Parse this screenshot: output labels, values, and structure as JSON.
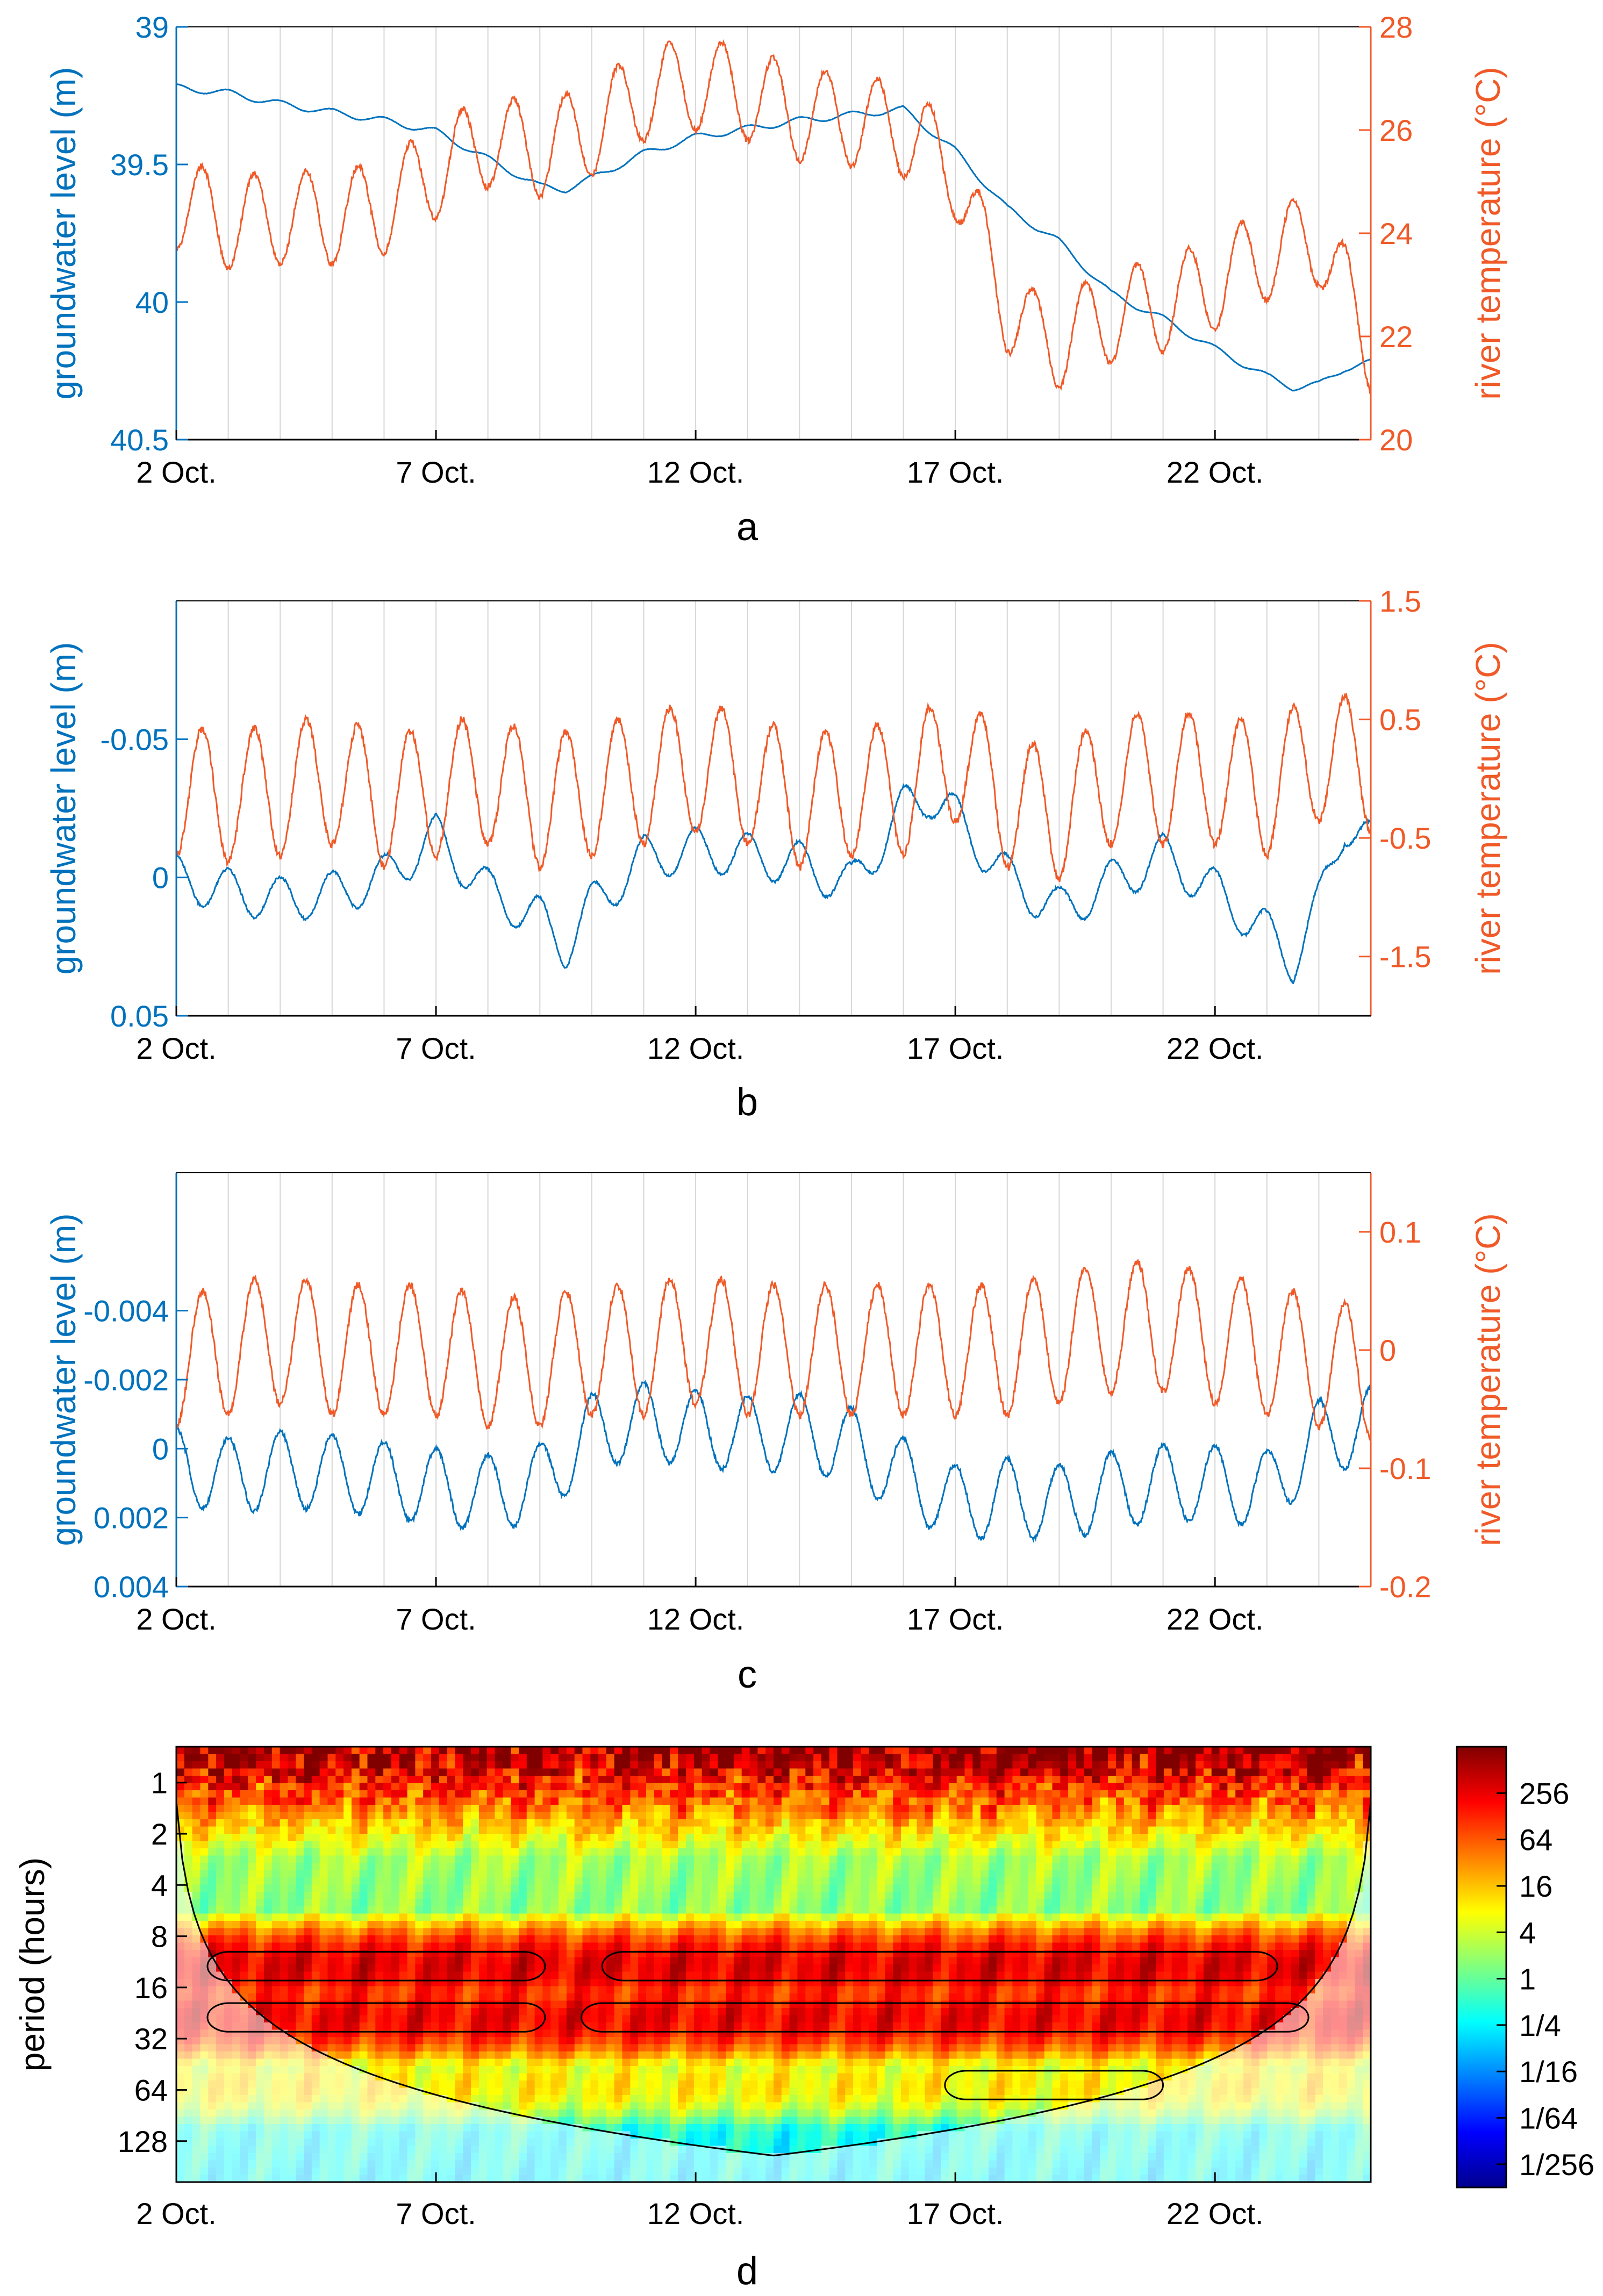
{
  "colors": {
    "groundwater": "#0072BD",
    "temperature": "#F05A28",
    "axis_black": "#000000",
    "grid": "#d6d6d6"
  },
  "chart_data": [
    {
      "type": "line",
      "panel_label": "a",
      "x_domain_days": [
        2,
        25
      ],
      "x_ticks": [
        {
          "day": 2,
          "label": "2 Oct."
        },
        {
          "day": 7,
          "label": "7 Oct."
        },
        {
          "day": 12,
          "label": "12 Oct."
        },
        {
          "day": 17,
          "label": "17 Oct."
        },
        {
          "day": 22,
          "label": "22 Oct."
        }
      ],
      "y_left": {
        "label": "groundwater level (m)",
        "lim": [
          39,
          40.5
        ],
        "reversed": true,
        "ticks": [
          {
            "v": 39,
            "label": "39"
          },
          {
            "v": 39.5,
            "label": "39.5"
          },
          {
            "v": 40,
            "label": "40"
          },
          {
            "v": 40.5,
            "label": "40.5"
          }
        ]
      },
      "y_right": {
        "label": "river temperature (°C)",
        "lim": [
          20,
          28
        ],
        "ticks": [
          {
            "v": 20,
            "label": "20"
          },
          {
            "v": 22,
            "label": "22"
          },
          {
            "v": 24,
            "label": "24"
          },
          {
            "v": 26,
            "label": "26"
          },
          {
            "v": 28,
            "label": "28"
          }
        ]
      },
      "series": [
        {
          "axis": "left",
          "color_key": "groundwater",
          "diurnal_amp": 0.012,
          "x": [
            2,
            3,
            4,
            5,
            6,
            7,
            8,
            9,
            9.5,
            10,
            11,
            12,
            13,
            14,
            15,
            16,
            17,
            18,
            19,
            20,
            21,
            22,
            23,
            23.5,
            24,
            24.5,
            25
          ],
          "y": [
            39.22,
            39.24,
            39.28,
            39.31,
            39.34,
            39.38,
            39.48,
            39.58,
            39.59,
            39.55,
            39.46,
            39.4,
            39.37,
            39.34,
            39.32,
            39.3,
            39.45,
            39.66,
            39.78,
            39.97,
            40.06,
            40.17,
            40.27,
            40.31,
            40.3,
            40.24,
            40.22
          ]
        },
        {
          "axis": "right",
          "color_key": "temperature",
          "diurnal_amp": 0.9,
          "x": [
            2,
            3,
            4,
            5,
            6,
            7,
            8,
            9,
            10,
            11,
            12,
            13,
            14,
            15,
            16,
            17,
            17.5,
            18,
            18.5,
            19,
            20,
            21,
            22,
            23,
            24,
            25
          ],
          "y": [
            24.6,
            24.2,
            24.3,
            24.3,
            24.5,
            25.2,
            25.8,
            25.6,
            26.0,
            26.7,
            26.9,
            26.7,
            26.3,
            26.2,
            26.0,
            25.2,
            23.8,
            22.6,
            22.0,
            21.9,
            22.4,
            22.6,
            23.0,
            23.6,
            23.9,
            21.8
          ]
        }
      ]
    },
    {
      "type": "line",
      "panel_label": "b",
      "x_domain_days": [
        2,
        25
      ],
      "x_ticks": [
        {
          "day": 2,
          "label": "2 Oct."
        },
        {
          "day": 7,
          "label": "7 Oct."
        },
        {
          "day": 12,
          "label": "12 Oct."
        },
        {
          "day": 17,
          "label": "17 Oct."
        },
        {
          "day": 22,
          "label": "22 Oct."
        }
      ],
      "y_left": {
        "label": "groundwater level (m)",
        "lim": [
          -0.1,
          0.05
        ],
        "reversed": true,
        "ticks": [
          {
            "v": -0.05,
            "label": "-0.05"
          },
          {
            "v": 0,
            "label": "0"
          },
          {
            "v": 0.05,
            "label": "0.05"
          }
        ]
      },
      "y_right": {
        "label": "river temperature (°C)",
        "lim": [
          -2,
          1.5
        ],
        "ticks": [
          {
            "v": -1.5,
            "label": "-1.5"
          },
          {
            "v": -0.5,
            "label": "-0.5"
          },
          {
            "v": 0.5,
            "label": "0.5"
          },
          {
            "v": 1.5,
            "label": "1.5"
          }
        ]
      },
      "series": [
        {
          "axis": "left",
          "color_key": "groundwater",
          "diurnal_amp": 0.008,
          "x": [
            2,
            3,
            4,
            5,
            6,
            7,
            8,
            9,
            9.5,
            10,
            11,
            12,
            13,
            14,
            15,
            16,
            16.5,
            17,
            18,
            19,
            20,
            21,
            22,
            23,
            23.5,
            24,
            24.5,
            25
          ],
          "y": [
            0.0,
            0.005,
            0.008,
            0.006,
            0.0,
            -0.015,
            0.005,
            0.015,
            0.025,
            0.01,
            -0.007,
            -0.01,
            -0.008,
            -0.005,
            0.003,
            -0.025,
            -0.03,
            -0.022,
            0.0,
            0.012,
            0.002,
            -0.008,
            0.005,
            0.02,
            0.03,
            0.01,
            -0.02,
            -0.012
          ]
        },
        {
          "axis": "right",
          "color_key": "temperature",
          "diurnal_amp": 0.55,
          "x": [
            2,
            3,
            4,
            5,
            6,
            7,
            8,
            9,
            10,
            11,
            12,
            13,
            14,
            15,
            16,
            17,
            18,
            19,
            20,
            21,
            22,
            23,
            24,
            25
          ],
          "y": [
            -0.1,
            -0.15,
            -0.1,
            0.0,
            -0.2,
            -0.1,
            0.0,
            -0.2,
            -0.1,
            0.0,
            0.1,
            0.0,
            -0.2,
            -0.1,
            -0.1,
            0.2,
            -0.2,
            -0.3,
            0.0,
            0.0,
            0.0,
            -0.1,
            0.2,
            0.1
          ]
        }
      ]
    },
    {
      "type": "line",
      "panel_label": "c",
      "x_domain_days": [
        2,
        25
      ],
      "x_ticks": [
        {
          "day": 2,
          "label": "2 Oct."
        },
        {
          "day": 7,
          "label": "7 Oct."
        },
        {
          "day": 12,
          "label": "12 Oct."
        },
        {
          "day": 17,
          "label": "17 Oct."
        },
        {
          "day": 22,
          "label": "22 Oct."
        }
      ],
      "y_left": {
        "label": "groundwater level (m)",
        "lim": [
          -0.008,
          0.004
        ],
        "reversed": true,
        "ticks": [
          {
            "v": -0.004,
            "label": "-0.004"
          },
          {
            "v": -0.002,
            "label": "-0.002"
          },
          {
            "v": 0,
            "label": "0"
          },
          {
            "v": 0.002,
            "label": "0.002"
          },
          {
            "v": 0.004,
            "label": "0.004"
          }
        ]
      },
      "y_right": {
        "label": "river temperature (°C)",
        "lim": [
          -0.2,
          0.15
        ],
        "ticks": [
          {
            "v": -0.2,
            "label": "-0.2"
          },
          {
            "v": -0.1,
            "label": "-0.1"
          },
          {
            "v": 0,
            "label": "0"
          },
          {
            "v": 0.1,
            "label": "0.1"
          }
        ]
      },
      "series": [
        {
          "axis": "left",
          "color_key": "groundwater",
          "diurnal_amp": 0.0011,
          "x": [
            2,
            3,
            4,
            5,
            6,
            7,
            8,
            9,
            10,
            11,
            12,
            13,
            14,
            15,
            16,
            17,
            18,
            19,
            20,
            21,
            22,
            23,
            24,
            25
          ],
          "y": [
            0.0005,
            0.0008,
            0.0006,
            0.0007,
            0.0009,
            0.0011,
            0.0013,
            0.001,
            -0.0005,
            -0.0008,
            -0.0006,
            -0.0004,
            -0.0005,
            -0.0001,
            0.0008,
            0.0016,
            0.0014,
            0.0016,
            0.0012,
            0.001,
            0.001,
            0.0012,
            -0.0003,
            -0.0007
          ]
        },
        {
          "axis": "right",
          "color_key": "temperature",
          "diurnal_amp": 0.055,
          "x": [
            2,
            3,
            4,
            5,
            6,
            7,
            8,
            9,
            10,
            11,
            12,
            13,
            14,
            15,
            16,
            17,
            18,
            19,
            20,
            21,
            22,
            23,
            24,
            25
          ],
          "y": [
            -0.01,
            0.0,
            0.01,
            0.0,
            0.0,
            0.0,
            -0.01,
            -0.01,
            0.0,
            0.0,
            0.01,
            0.0,
            0.0,
            0.0,
            0.0,
            0.0,
            0.0,
            0.01,
            0.02,
            0.02,
            0.01,
            0.0,
            -0.01,
            -0.02
          ]
        }
      ]
    },
    {
      "type": "heatmap",
      "panel_label": "d",
      "x_domain_days": [
        2,
        25
      ],
      "x_ticks": [
        {
          "day": 2,
          "label": "2 Oct."
        },
        {
          "day": 7,
          "label": "7 Oct."
        },
        {
          "day": 12,
          "label": "12 Oct."
        },
        {
          "day": 17,
          "label": "17 Oct."
        },
        {
          "day": 22,
          "label": "22 Oct."
        }
      ],
      "y_label": "period (hours)",
      "y_log2_lim": [
        -0.7,
        7.8
      ],
      "y_ticks": [
        {
          "v": 1,
          "label": "1"
        },
        {
          "v": 2,
          "label": "2"
        },
        {
          "v": 4,
          "label": "4"
        },
        {
          "v": 8,
          "label": "8"
        },
        {
          "v": 16,
          "label": "16"
        },
        {
          "v": 32,
          "label": "32"
        },
        {
          "v": 64,
          "label": "64"
        },
        {
          "v": 128,
          "label": "128"
        }
      ],
      "colorbar": {
        "log2_range": [
          -9,
          10
        ],
        "ticks": [
          {
            "log2": 8,
            "label": "256"
          },
          {
            "log2": 6,
            "label": "64"
          },
          {
            "log2": 4,
            "label": "16"
          },
          {
            "log2": 2,
            "label": "4"
          },
          {
            "log2": 0,
            "label": "1"
          },
          {
            "log2": -2,
            "label": "1/4"
          },
          {
            "log2": -4,
            "label": "1/16"
          },
          {
            "log2": -6,
            "label": "1/64"
          },
          {
            "log2": -8,
            "label": "1/256"
          }
        ]
      },
      "bands": [
        {
          "period_hours": 12,
          "log2_power": 8.5
        },
        {
          "period_hours": 24,
          "log2_power": 8.2
        },
        {
          "period_hours": 60,
          "log2_power": 3.5
        }
      ]
    }
  ]
}
